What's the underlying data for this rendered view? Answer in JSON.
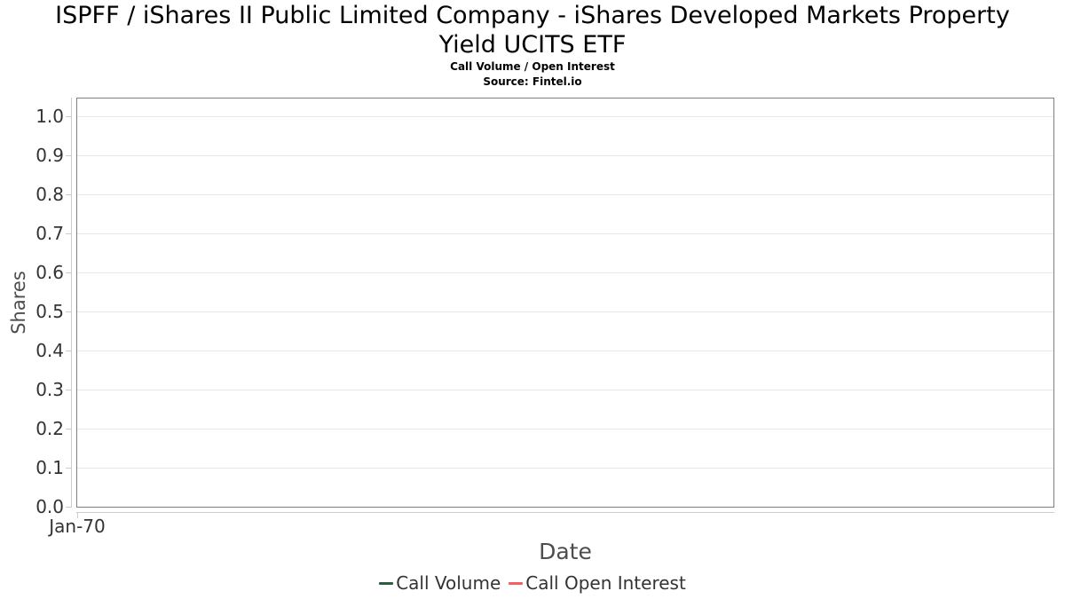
{
  "header": {
    "title_line1": "ISPFF / iShares II Public Limited Company - iShares Developed Markets Property",
    "title_line2": "Yield UCITS ETF",
    "subtitle": "Call Volume / Open Interest",
    "source": "Source: Fintel.io"
  },
  "chart_data": {
    "type": "line",
    "title": "ISPFF / iShares II Public Limited Company - iShares Developed Markets Property Yield UCITS ETF",
    "subtitle": "Call Volume / Open Interest",
    "source": "Source: Fintel.io",
    "xlabel": "Date",
    "ylabel": "Shares",
    "ylim": [
      0.0,
      1.0
    ],
    "ytick_step": 0.1,
    "yticks": [
      "1.0",
      "0.9",
      "0.8",
      "0.7",
      "0.6",
      "0.5",
      "0.4",
      "0.3",
      "0.2",
      "0.1",
      "0.0"
    ],
    "xticks": [
      "Jan-70"
    ],
    "grid": true,
    "legend_position": "bottom",
    "series": [
      {
        "name": "Call Volume",
        "color": "#2b5e41",
        "values": []
      },
      {
        "name": "Call Open Interest",
        "color": "#f85e5e",
        "values": []
      }
    ]
  },
  "colors": {
    "plot_border": "#7f7f7f",
    "gridline": "#e6e6e6",
    "tick": "#cccccc",
    "tick_label": "#333333",
    "axis_title": "#4d4d4d",
    "legend_text": "#333333",
    "title_text": "#000000",
    "background": "#ffffff"
  }
}
